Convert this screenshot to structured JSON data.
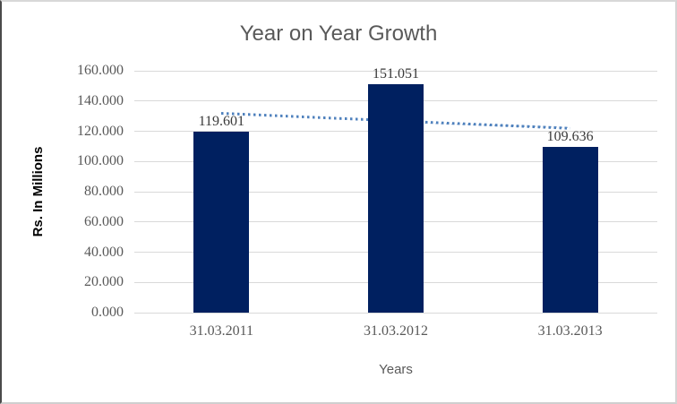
{
  "chart_data": {
    "type": "bar",
    "title": "Year on Year Growth",
    "xlabel": "Years",
    "ylabel": "Rs. In Millions",
    "categories": [
      "31.03.2011",
      "31.03.2012",
      "31.03.2013"
    ],
    "values": [
      119.601,
      151.051,
      109.636
    ],
    "data_labels": [
      "119.601",
      "151.051",
      "109.636"
    ],
    "yticks": [
      "160.000",
      "140.000",
      "120.000",
      "100.000",
      "80.000",
      "60.000",
      "40.000",
      "20.000",
      "0.000"
    ],
    "ylim": [
      0,
      160
    ],
    "ytick_step": 20,
    "grid": true,
    "legend": "none",
    "bar_color": "#002060",
    "trendline": {
      "type": "linear",
      "style": "dotted",
      "color": "#4f81bd",
      "start_value": 131.75,
      "end_value": 121.78
    },
    "colors": {
      "title": "#595959",
      "tick_label": "#595959",
      "data_label": "#3a3a3a",
      "gridline": "#d9d9d9",
      "bar": "#002060",
      "trendline": "#4f81bd"
    }
  }
}
